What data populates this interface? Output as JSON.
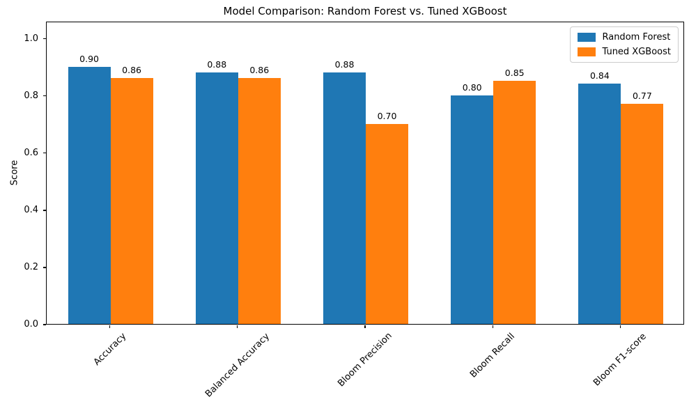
{
  "chart_data": {
    "type": "bar",
    "title": "Model Comparison: Random Forest vs. Tuned XGBoost",
    "ylabel": "Score",
    "xlabel": "",
    "categories": [
      "Accuracy",
      "Balanced Accuracy",
      "Bloom Precision",
      "Bloom Recall",
      "Bloom F1-score"
    ],
    "series": [
      {
        "name": "Random Forest",
        "color": "#1f77b4",
        "values": [
          0.9,
          0.88,
          0.88,
          0.8,
          0.84
        ]
      },
      {
        "name": "Tuned XGBoost",
        "color": "#ff7f0e",
        "values": [
          0.86,
          0.86,
          0.7,
          0.85,
          0.77
        ]
      }
    ],
    "bar_value_labels": [
      [
        "0.90",
        "0.88",
        "0.88",
        "0.80",
        "0.84"
      ],
      [
        "0.86",
        "0.86",
        "0.70",
        "0.85",
        "0.77"
      ]
    ],
    "ytick_labels": [
      "0.0",
      "0.2",
      "0.4",
      "0.6",
      "0.8",
      "1.0"
    ],
    "yticks": [
      0.0,
      0.2,
      0.4,
      0.6,
      0.8,
      1.0
    ],
    "ylim": [
      0,
      1.06
    ],
    "grid": false,
    "legend_position": "upper right"
  }
}
